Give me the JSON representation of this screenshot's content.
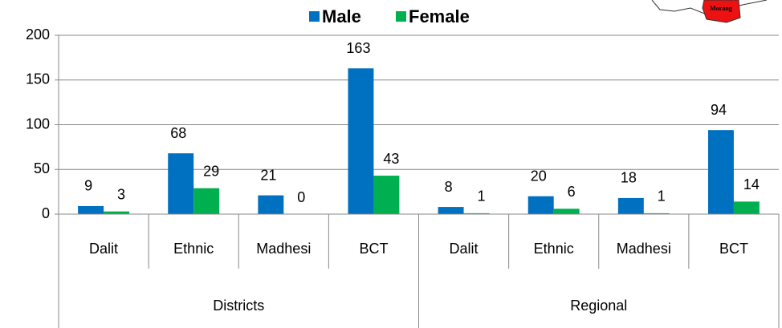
{
  "chart_data": {
    "type": "bar",
    "categories": [
      "Dalit",
      "Ethnic",
      "Madhesi",
      "BCT",
      "Dalit",
      "Ethnic",
      "Madhesi",
      "BCT"
    ],
    "groups": [
      "Districts",
      "Regional"
    ],
    "series": [
      {
        "name": "Male",
        "color": "#0070c0",
        "values": [
          9,
          68,
          21,
          163,
          8,
          20,
          18,
          94
        ]
      },
      {
        "name": "Female",
        "color": "#00b050",
        "values": [
          3,
          29,
          0,
          43,
          1,
          6,
          1,
          14
        ]
      }
    ],
    "ylim": [
      0,
      200
    ],
    "yticks": [
      0,
      50,
      100,
      150,
      200
    ],
    "grid": true,
    "legend": "top",
    "map_label": "Morang"
  }
}
